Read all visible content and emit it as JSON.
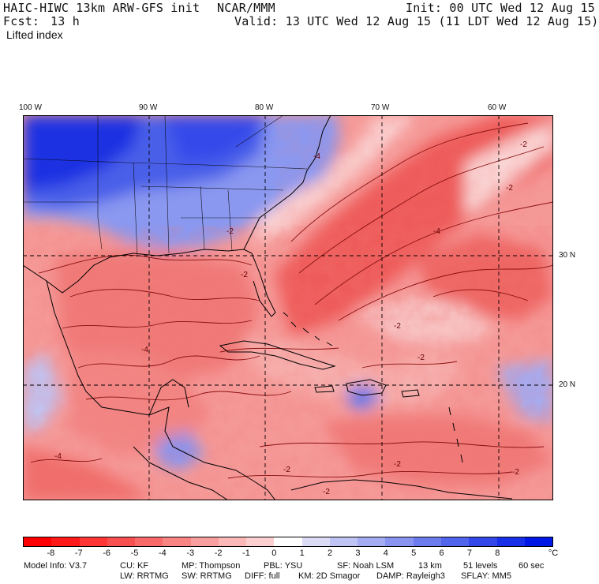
{
  "header": {
    "model_line": "HAIC-HIWC 13km ARW-GFS init",
    "agency": "NCAR/MMM",
    "init_line": "Init: 00 UTC Wed 12 Aug 15",
    "fcst_label": "Fcst:",
    "fcst_value": "13 h",
    "valid_line": "Valid: 13 UTC Wed 12 Aug 15 (11 LDT Wed 12 Aug 15)",
    "field_name": "Lifted index"
  },
  "map": {
    "lon_labels": [
      "100 W",
      "90 W",
      "80 W",
      "70 W",
      "60 W"
    ],
    "lat_labels": [
      "30 N",
      "20 N"
    ],
    "contour_labels": [
      "-2",
      "-2",
      "-4",
      "-2",
      "-2",
      "-4",
      "-2",
      "-2",
      "-4",
      "-2",
      "-2",
      "-2",
      "-4",
      "-2"
    ],
    "colors": {
      "negative_strong": "#e02020",
      "negative_mid": "#f07a78",
      "neutral": "#fde6e6",
      "positive_mid": "#8090f0",
      "positive_strong": "#1428e0"
    }
  },
  "colorbar": {
    "labels": [
      "-8",
      "-7",
      "-6",
      "-5",
      "-4",
      "-3",
      "-2",
      "-1",
      "0",
      "1",
      "2",
      "3",
      "4",
      "5",
      "6",
      "7",
      "8"
    ],
    "unit": "°C",
    "colors": [
      "#ff0000",
      "#ff1a1a",
      "#ff3636",
      "#f85050",
      "#f86a6a",
      "#f88484",
      "#f89e9e",
      "#fab8b8",
      "#fcd0d0",
      "#ffffff",
      "#dcdcf6",
      "#c0c4f4",
      "#a4acf2",
      "#8894f0",
      "#6c7cee",
      "#5064ec",
      "#3448ea",
      "#1830e8",
      "#0018e6"
    ]
  },
  "footer": {
    "line1": [
      "Model Info: V3.7",
      "CU: KF",
      "MP: Thompson",
      "PBL: YSU",
      "SF: Noah LSM",
      "13 km",
      "51 levels",
      "60 sec"
    ],
    "line2": [
      "LW: RRTMG",
      "SW: RRTMG",
      "DIFF: full",
      "KM: 2D Smagor",
      "DAMP: Rayleigh3",
      "SFLAY: MM5"
    ]
  }
}
